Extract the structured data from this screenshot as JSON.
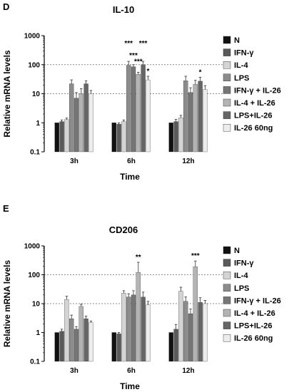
{
  "chart_data": [
    {
      "type": "bar",
      "panel_label": "D",
      "title": "IL-10",
      "xlabel": "Time",
      "ylabel": "Relative mRNA levels",
      "yscale": "log",
      "ylim": [
        0.1,
        1000
      ],
      "yticks": [
        "0.1",
        "1",
        "10",
        "100",
        "1000"
      ],
      "grid": "dotted at 10 and 100",
      "legend_position": "right",
      "categories": [
        "3h",
        "6h",
        "12h"
      ],
      "series": [
        {
          "name": "N",
          "color": "#111111",
          "values": [
            1,
            1,
            1
          ],
          "errors": [
            0,
            0,
            0
          ]
        },
        {
          "name": "IFN-γ",
          "color": "#5a5a5a",
          "values": [
            1.1,
            0.9,
            1.1
          ],
          "errors": [
            0.15,
            0.1,
            0.2
          ]
        },
        {
          "name": "IL-4",
          "color": "#d4d4d4",
          "values": [
            1.3,
            1.1,
            1.5
          ],
          "errors": [
            0.15,
            0.15,
            0.3
          ]
        },
        {
          "name": "LPS",
          "color": "#8c8c8c",
          "values": [
            22,
            95,
            28
          ],
          "errors": [
            8,
            35,
            12
          ]
        },
        {
          "name": "IFN-γ + IL-26",
          "color": "#767676",
          "values": [
            7,
            85,
            11
          ],
          "errors": [
            4,
            15,
            5
          ]
        },
        {
          "name": "IL-4 + IL-26",
          "color": "#b4b4b4",
          "values": [
            10,
            47,
            21
          ],
          "errors": [
            5,
            8,
            8
          ]
        },
        {
          "name": "LPS+IL-26",
          "color": "#666666",
          "values": [
            22,
            100,
            27
          ],
          "errors": [
            6,
            30,
            10
          ]
        },
        {
          "name": "IL-26 60ng",
          "color": "#ececec",
          "values": [
            10,
            30,
            14
          ],
          "errors": [
            3,
            10,
            5
          ]
        }
      ],
      "annotations": [
        {
          "category": "6h",
          "series": "LPS",
          "text": "***"
        },
        {
          "category": "6h",
          "series": "IFN-γ + IL-26",
          "text": "***"
        },
        {
          "category": "6h",
          "series": "IL-4 + IL-26",
          "text": "***"
        },
        {
          "category": "6h",
          "series": "LPS+IL-26",
          "text": "***"
        },
        {
          "category": "6h",
          "series": "IL-26 60ng",
          "text": "*"
        },
        {
          "category": "12h",
          "series": "LPS+IL-26",
          "text": "*"
        }
      ]
    },
    {
      "type": "bar",
      "panel_label": "E",
      "title": "CD206",
      "xlabel": "Time",
      "ylabel": "Relative mRNA levels",
      "yscale": "log",
      "ylim": [
        0.1,
        1000
      ],
      "yticks": [
        "0.1",
        "1",
        "10",
        "100",
        "1000"
      ],
      "grid": "dotted at 10 and 100",
      "legend_position": "right",
      "categories": [
        "3h",
        "6h",
        "12h"
      ],
      "series": [
        {
          "name": "N",
          "color": "#111111",
          "values": [
            1,
            1,
            1
          ],
          "errors": [
            0,
            0,
            0
          ]
        },
        {
          "name": "IFN-γ",
          "color": "#5a5a5a",
          "values": [
            1.1,
            0.9,
            1.3
          ],
          "errors": [
            0.2,
            0.1,
            0.6
          ]
        },
        {
          "name": "IL-4",
          "color": "#d4d4d4",
          "values": [
            14,
            23,
            27
          ],
          "errors": [
            4,
            5,
            10
          ]
        },
        {
          "name": "LPS",
          "color": "#8c8c8c",
          "values": [
            3,
            17,
            12
          ],
          "errors": [
            1,
            5,
            5
          ]
        },
        {
          "name": "IFN-γ + IL-26",
          "color": "#767676",
          "values": [
            1.3,
            20,
            4.5
          ],
          "errors": [
            0.3,
            8,
            2
          ]
        },
        {
          "name": "IL-4 + IL-26",
          "color": "#b4b4b4",
          "values": [
            8,
            120,
            190
          ],
          "errors": [
            1.5,
            150,
            110
          ]
        },
        {
          "name": "LPS+IL-26",
          "color": "#666666",
          "values": [
            3,
            17,
            11
          ],
          "errors": [
            0.7,
            8,
            5
          ]
        },
        {
          "name": "IL-26 60ng",
          "color": "#ececec",
          "values": [
            2.2,
            9,
            10
          ],
          "errors": [
            0.3,
            3,
            3
          ]
        }
      ],
      "annotations": [
        {
          "category": "6h",
          "series": "IL-4 + IL-26",
          "text": "**"
        },
        {
          "category": "12h",
          "series": "IL-4 + IL-26",
          "text": "***"
        }
      ]
    }
  ]
}
